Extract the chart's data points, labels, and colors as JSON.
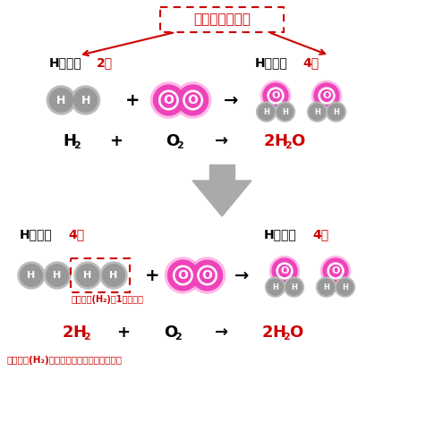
{
  "bg_color": "#ffffff",
  "dark_red": "#cc0000",
  "gray_atom": "#999999",
  "gray_atom_light": "#bbbbbb",
  "pink_atom": "#ee44bb",
  "pink_glow": "#ff99dd",
  "white": "#ffffff",
  "black": "#000000",
  "arrow_gray": "#aaaaaa",
  "top_banner_text": "数が等しくない",
  "h_count_black": "Hの数：",
  "h_count_2": "2個",
  "h_count_4": "4個",
  "note1": "水素分子(H₂)を1個増やす",
  "note2": "水素分子(H₂)の個数を化学式の左側に書く"
}
